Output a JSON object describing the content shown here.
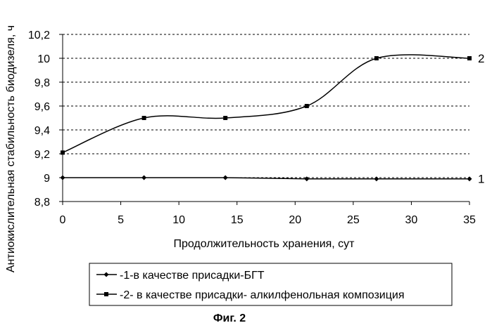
{
  "chart_data": {
    "type": "line",
    "xlabel": "Продолжительность хранения, сут",
    "ylabel": "Антиокислительная стабильность биодизеля, ч",
    "xlim": [
      0,
      35
    ],
    "ylim": [
      8.8,
      10.2
    ],
    "x_ticks": [
      "0",
      "5",
      "10",
      "15",
      "20",
      "25",
      "30",
      "35"
    ],
    "y_ticks": [
      "8,8",
      "9",
      "9,2",
      "9,4",
      "9,6",
      "9,8",
      "10",
      "10,2"
    ],
    "grid": "horizontal dashed",
    "legend_position": "bottom",
    "series": [
      {
        "name": "-1-в качестве присадки-БГТ",
        "end_label": "1",
        "marker": "diamond",
        "smooth": false,
        "x": [
          0,
          7,
          14,
          21,
          27,
          35
        ],
        "y": [
          9.0,
          9.0,
          9.0,
          8.99,
          8.99,
          8.99
        ]
      },
      {
        "name": "-2- в качестве присадки- алкилфенольная композиция",
        "end_label": "2",
        "marker": "square",
        "smooth": true,
        "x": [
          0,
          7,
          14,
          21,
          27,
          35
        ],
        "y": [
          9.21,
          9.5,
          9.5,
          9.6,
          10.0,
          10.0
        ]
      }
    ]
  },
  "caption": "Фиг. 2",
  "colors": {
    "line": "#000000",
    "grid": "#000000"
  }
}
